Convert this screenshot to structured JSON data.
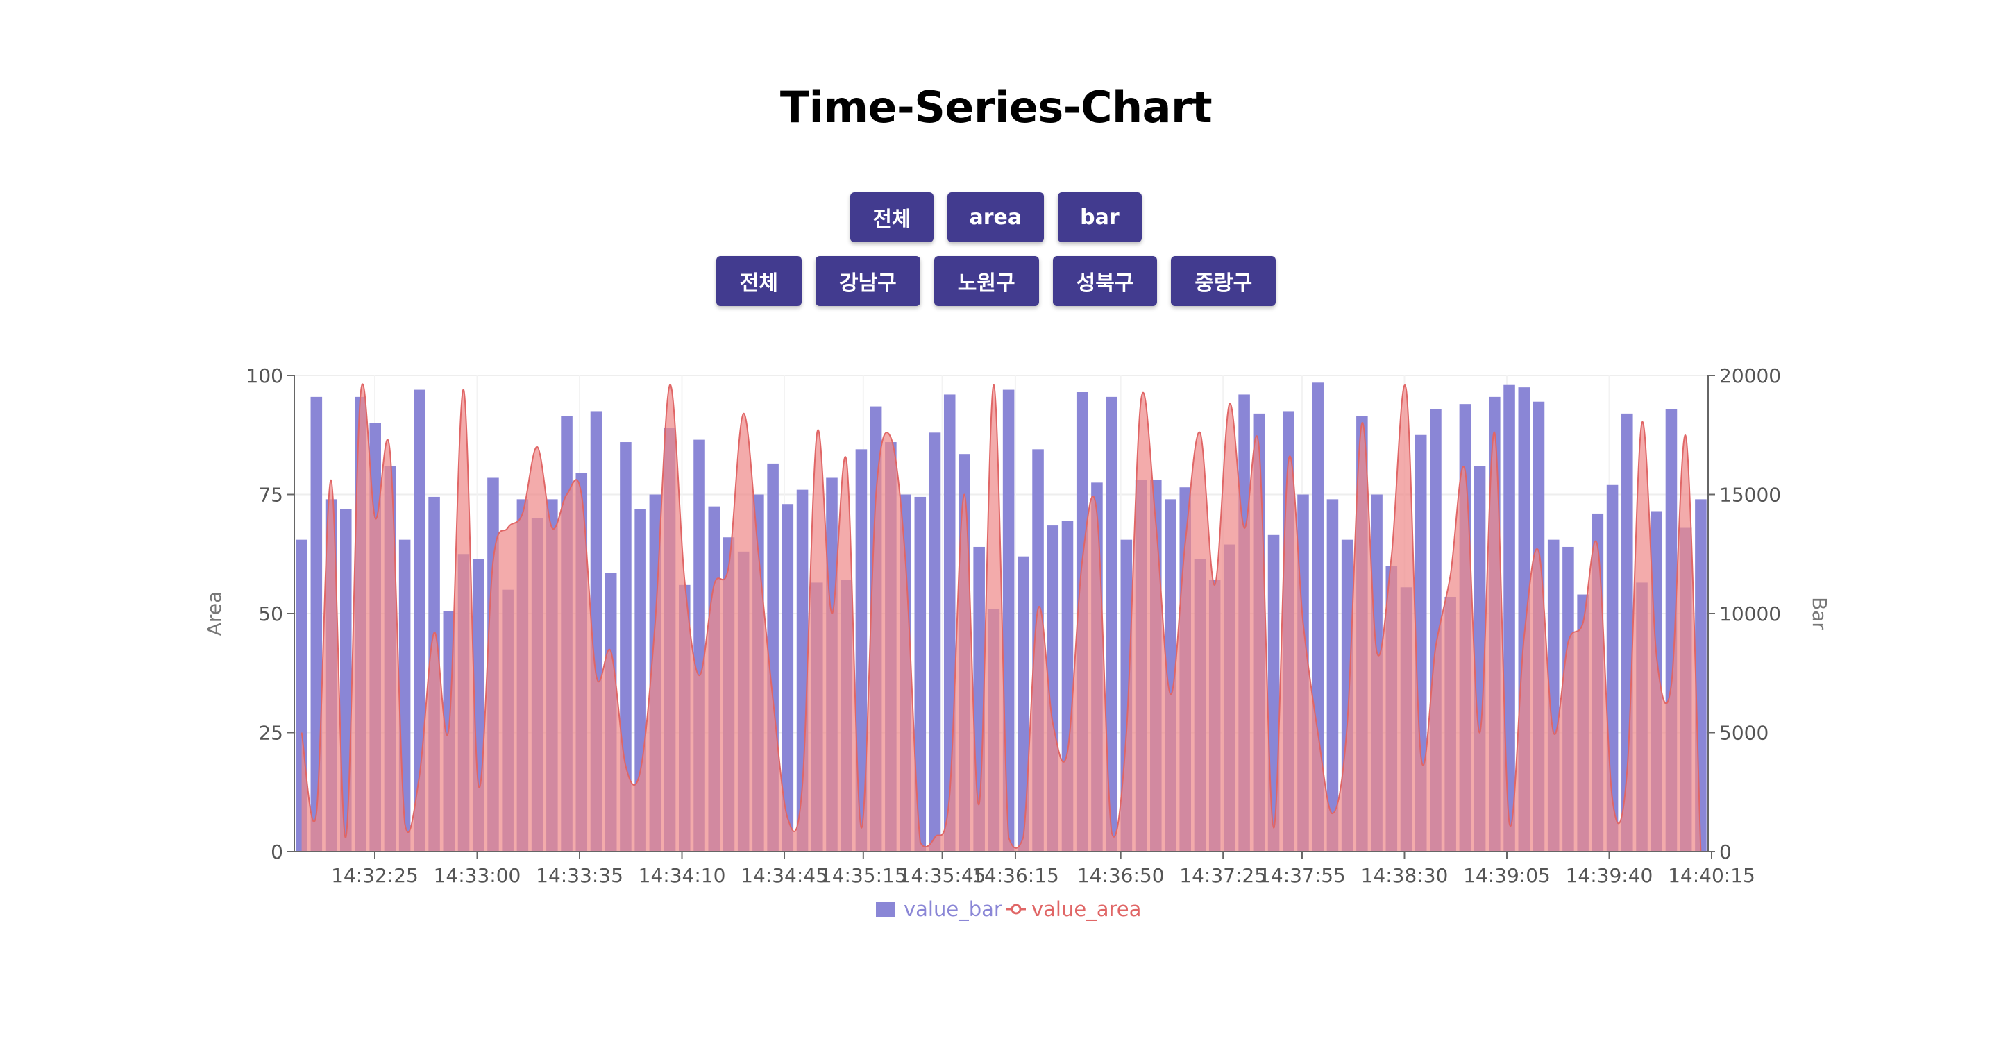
{
  "page": {
    "title": "Time-Series-Chart"
  },
  "filters": {
    "type_buttons": [
      "전체",
      "area",
      "bar"
    ],
    "region_buttons": [
      "전체",
      "강남구",
      "노원구",
      "성북구",
      "중랑구"
    ]
  },
  "colors": {
    "bar": "#8a86d6",
    "area": "#ef8a8a",
    "area_stroke": "#e06666",
    "button": "#423b8f"
  },
  "chart_data": {
    "type": "bar",
    "title": "",
    "x_ticks": [
      "14:32:25",
      "14:33:00",
      "14:33:35",
      "14:34:10",
      "14:34:45",
      "14:35:15",
      "14:35:45",
      "14:36:15",
      "14:36:50",
      "14:37:25",
      "14:37:55",
      "14:38:30",
      "14:39:05",
      "14:39:40",
      "14:40:15"
    ],
    "x_tick_seconds": [
      0,
      35,
      70,
      105,
      140,
      167,
      194,
      219,
      255,
      290,
      317,
      352,
      387,
      422,
      457
    ],
    "y_left": {
      "label": "Area",
      "ticks": [
        "0",
        "25",
        "50",
        "75",
        "100"
      ],
      "min": 0,
      "max": 100
    },
    "y_right": {
      "label": "Bar",
      "ticks": [
        "0",
        "5000",
        "10000",
        "15000",
        "20000"
      ],
      "min": 0,
      "max": 20000
    },
    "legend": {
      "position": "bottom-center",
      "items": [
        "value_bar",
        "value_area"
      ]
    },
    "grid": true,
    "series": [
      {
        "name": "value_bar",
        "type": "bar",
        "axis": "right",
        "values": [
          13100,
          19100,
          14800,
          14400,
          19100,
          18000,
          16200,
          13100,
          19400,
          14900,
          10100,
          12500,
          12300,
          15700,
          11000,
          14800,
          14000,
          14800,
          18300,
          15900,
          18500,
          11700,
          17200,
          14400,
          15000,
          17800,
          11200,
          17300,
          14500,
          13200,
          12600,
          15000,
          16300,
          14600,
          15200,
          11300,
          15700,
          11400,
          16900,
          18700,
          17200,
          15000,
          14900,
          17600,
          19200,
          16700,
          12800,
          10200,
          19400,
          12400,
          16900,
          13700,
          13900,
          19300,
          15500,
          19100,
          13100,
          15600,
          15600,
          14800,
          15300,
          12300,
          11400,
          12900,
          19200,
          18400,
          13300,
          18500,
          15000,
          19700,
          14800,
          13100,
          18300,
          15000,
          12000,
          11100,
          17500,
          18600,
          10700,
          18800,
          16200,
          19100,
          19600,
          19500,
          18900,
          13100,
          12800,
          10800,
          14200,
          15400,
          18400,
          11300,
          14300,
          18600,
          13600,
          14800
        ]
      },
      {
        "name": "value_area",
        "type": "area",
        "axis": "left",
        "values": [
          25,
          8,
          78,
          3,
          96,
          70,
          84,
          6,
          16,
          46,
          26,
          97,
          14,
          61,
          68,
          71,
          85,
          68,
          75,
          75,
          37,
          42,
          18,
          17,
          48,
          98,
          57,
          37,
          56,
          60,
          92,
          63,
          32,
          7,
          14,
          88,
          50,
          82,
          5,
          75,
          87,
          61,
          2,
          3,
          12,
          75,
          10,
          98,
          3,
          3,
          51,
          27,
          21,
          61,
          71,
          4,
          25,
          95,
          69,
          33,
          65,
          88,
          56,
          94,
          68,
          85,
          5,
          82,
          48,
          25,
          8,
          27,
          90,
          42,
          62,
          97,
          20,
          43,
          58,
          80,
          25,
          88,
          6,
          45,
          63,
          25,
          44,
          48,
          64,
          11,
          17,
          90,
          41,
          35,
          87,
          0
        ]
      }
    ]
  }
}
